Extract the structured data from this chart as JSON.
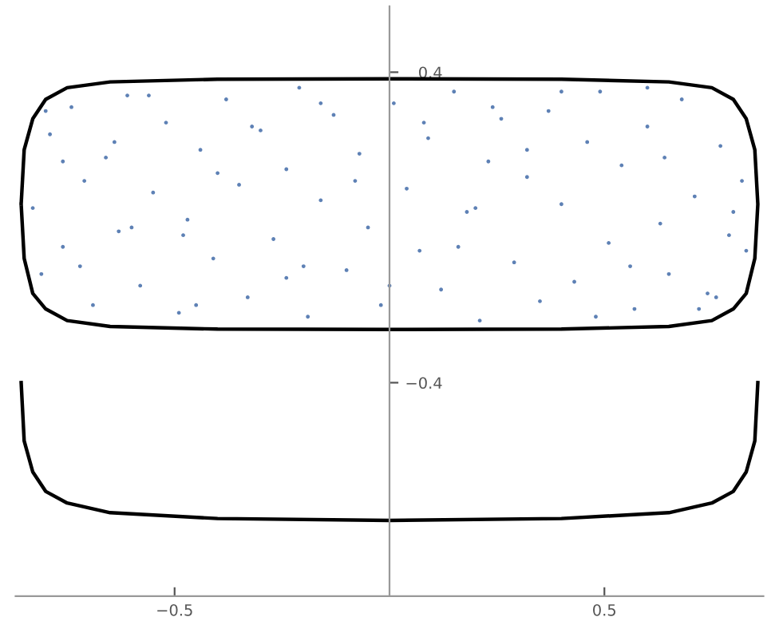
{
  "chart_data": {
    "type": "scatter",
    "xlim": [
      -0.87,
      0.87
    ],
    "ylim": [
      -0.95,
      0.57
    ],
    "xticks": [
      {
        "value": -0.5,
        "label": "−0.5"
      },
      0.5
    ],
    "yticks": [
      {
        "value": -0.4,
        "label": "−0.4"
      },
      0.4
    ],
    "grid": false,
    "legend": false,
    "series": [
      {
        "color": "#5e81b5",
        "marker": "circle",
        "x": [
          -0.83,
          -0.81,
          -0.79,
          -0.76,
          -0.74,
          -0.71,
          -0.69,
          -0.66,
          -0.63,
          -0.61,
          -0.58,
          -0.55,
          -0.52,
          -0.49,
          -0.47,
          -0.44,
          -0.41,
          -0.38,
          -0.35,
          -0.33,
          -0.3,
          -0.27,
          -0.24,
          -0.21,
          -0.19,
          -0.16,
          -0.13,
          -0.1,
          -0.07,
          -0.05,
          -0.02,
          0.01,
          0.04,
          0.07,
          0.09,
          0.12,
          0.15,
          0.18,
          0.21,
          0.23,
          0.26,
          0.29,
          0.32,
          0.35,
          0.37,
          0.4,
          0.43,
          0.46,
          0.49,
          0.51,
          0.54,
          0.57,
          0.6,
          0.63,
          0.65,
          0.68,
          0.71,
          0.74,
          0.77,
          0.79,
          0.82,
          0.83,
          -0.8,
          -0.72,
          -0.64,
          -0.56,
          -0.48,
          -0.4,
          -0.32,
          -0.24,
          -0.16,
          -0.08,
          0.0,
          0.08,
          0.16,
          0.24,
          0.32,
          0.4,
          0.48,
          0.56,
          0.64,
          0.72,
          0.8,
          -0.6,
          -0.2,
          0.2,
          0.6,
          -0.76,
          0.76,
          -0.45
        ],
        "values": [
          0.05,
          -0.12,
          0.24,
          -0.05,
          0.31,
          0.12,
          -0.2,
          0.18,
          -0.01,
          0.34,
          -0.15,
          0.09,
          0.27,
          -0.22,
          0.02,
          0.2,
          -0.08,
          0.33,
          0.11,
          -0.18,
          0.25,
          -0.03,
          0.15,
          0.36,
          -0.23,
          0.07,
          0.29,
          -0.11,
          0.19,
          0.0,
          -0.2,
          0.32,
          0.1,
          -0.06,
          0.23,
          -0.16,
          0.35,
          0.04,
          -0.24,
          0.17,
          0.28,
          -0.09,
          0.13,
          -0.19,
          0.3,
          0.06,
          -0.14,
          0.22,
          0.35,
          -0.04,
          0.16,
          -0.21,
          0.26,
          0.01,
          -0.12,
          0.33,
          0.08,
          -0.17,
          0.21,
          -0.02,
          0.12,
          -0.06,
          0.3,
          -0.1,
          0.22,
          0.34,
          -0.02,
          0.14,
          0.26,
          -0.13,
          0.32,
          0.12,
          -0.15,
          0.27,
          -0.05,
          0.31,
          0.2,
          0.35,
          -0.23,
          -0.1,
          0.18,
          -0.21,
          0.04,
          0.0,
          -0.1,
          0.05,
          0.36,
          0.17,
          -0.18,
          -0.2
        ]
      },
      {
        "type": "line",
        "color": "#000000",
        "marker": "none",
        "line_style": "solid",
        "x": [
          -0.857,
          -0.85,
          -0.83,
          -0.8,
          -0.75,
          -0.65,
          -0.4,
          0,
          0.4,
          0.65,
          0.75,
          0.8,
          0.83,
          0.85,
          0.857
        ],
        "values": [
          -0.4,
          -0.55,
          -0.63,
          -0.68,
          -0.71,
          -0.735,
          -0.75,
          -0.755,
          -0.75,
          -0.735,
          -0.71,
          -0.68,
          -0.63,
          -0.55,
          -0.4
        ]
      }
    ]
  }
}
